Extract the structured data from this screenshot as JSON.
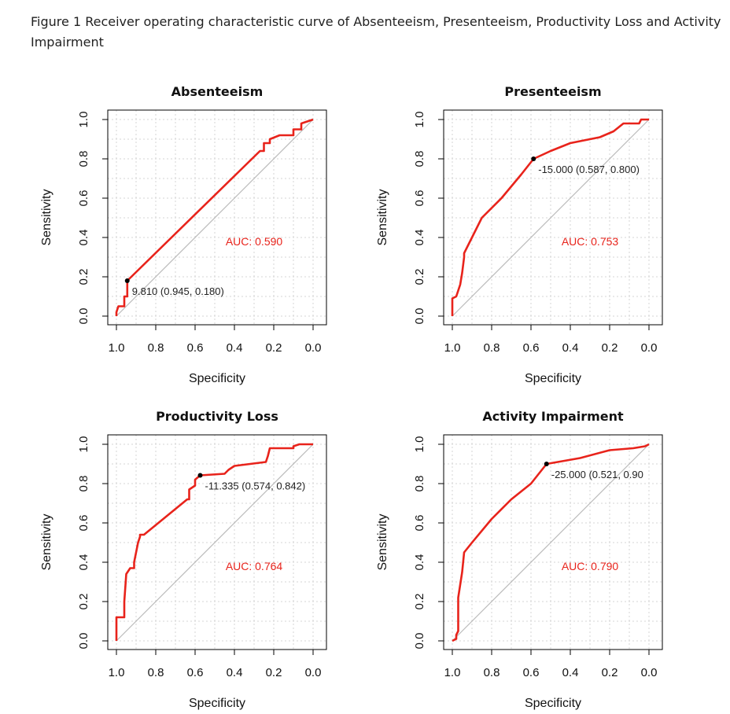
{
  "figure_caption": "Figure 1 Receiver operating characteristic curve of Absenteeism, Presenteeism, Productivity Loss and Activity Impairment",
  "colors": {
    "curve": "#e8231b",
    "diagonal": "#bbbbbb",
    "grid": "#d4d4d4",
    "point": "#000000",
    "auc_text": "#e8231b"
  },
  "chart_data": [
    {
      "type": "line",
      "title": "Absenteeism",
      "xlabel": "Specificity",
      "ylabel": "Sensitivity",
      "xlim": [
        1.0,
        0.0
      ],
      "ylim": [
        0.0,
        1.0
      ],
      "x_ticks": [
        "1.0",
        "0.8",
        "0.6",
        "0.4",
        "0.2",
        "0.0"
      ],
      "y_ticks": [
        "0.0",
        "0.2",
        "0.4",
        "0.6",
        "0.8",
        "1.0"
      ],
      "grid": true,
      "auc_label": "AUC: 0.590",
      "threshold_label": "9.810 (0.945, 0.180)",
      "threshold_point": {
        "specificity": 0.945,
        "sensitivity": 0.18
      },
      "specificity": [
        1.0,
        1.0,
        0.99,
        0.96,
        0.96,
        0.945,
        0.945,
        0.27,
        0.25,
        0.25,
        0.22,
        0.22,
        0.17,
        0.17,
        0.1,
        0.1,
        0.06,
        0.06,
        0.03,
        0.0
      ],
      "sensitivity": [
        0.0,
        0.02,
        0.05,
        0.05,
        0.1,
        0.1,
        0.18,
        0.84,
        0.84,
        0.88,
        0.88,
        0.9,
        0.92,
        0.92,
        0.92,
        0.95,
        0.95,
        0.98,
        0.99,
        1.0
      ]
    },
    {
      "type": "line",
      "title": "Presenteeism",
      "xlabel": "Specificity",
      "ylabel": "Sensitivity",
      "xlim": [
        1.0,
        0.0
      ],
      "ylim": [
        0.0,
        1.0
      ],
      "x_ticks": [
        "1.0",
        "0.8",
        "0.6",
        "0.4",
        "0.2",
        "0.0"
      ],
      "y_ticks": [
        "0.0",
        "0.2",
        "0.4",
        "0.6",
        "0.8",
        "1.0"
      ],
      "grid": true,
      "auc_label": "AUC: 0.753",
      "threshold_label": "-15.000 (0.587, 0.800)",
      "threshold_point": {
        "specificity": 0.587,
        "sensitivity": 0.8
      },
      "specificity": [
        1.0,
        1.0,
        0.98,
        0.96,
        0.95,
        0.94,
        0.94,
        0.9,
        0.85,
        0.75,
        0.65,
        0.587,
        0.5,
        0.4,
        0.3,
        0.25,
        0.18,
        0.13,
        0.05,
        0.04,
        0.0
      ],
      "sensitivity": [
        0.0,
        0.09,
        0.1,
        0.16,
        0.22,
        0.3,
        0.32,
        0.4,
        0.5,
        0.6,
        0.72,
        0.8,
        0.84,
        0.88,
        0.9,
        0.91,
        0.94,
        0.98,
        0.98,
        1.0,
        1.0
      ]
    },
    {
      "type": "line",
      "title": "Productivity Loss",
      "xlabel": "Specificity",
      "ylabel": "Sensitivity",
      "xlim": [
        1.0,
        0.0
      ],
      "ylim": [
        0.0,
        1.0
      ],
      "x_ticks": [
        "1.0",
        "0.8",
        "0.6",
        "0.4",
        "0.2",
        "0.0"
      ],
      "y_ticks": [
        "0.0",
        "0.2",
        "0.4",
        "0.6",
        "0.8",
        "1.0"
      ],
      "grid": true,
      "auc_label": "AUC: 0.764",
      "threshold_label": "-11.335 (0.574, 0.842)",
      "threshold_point": {
        "specificity": 0.574,
        "sensitivity": 0.842
      },
      "specificity": [
        1.0,
        1.0,
        0.96,
        0.96,
        0.95,
        0.93,
        0.91,
        0.91,
        0.89,
        0.88,
        0.88,
        0.86,
        0.64,
        0.63,
        0.63,
        0.6,
        0.6,
        0.574,
        0.45,
        0.43,
        0.4,
        0.24,
        0.23,
        0.22,
        0.1,
        0.1,
        0.07,
        0.0
      ],
      "sensitivity": [
        0.0,
        0.12,
        0.12,
        0.2,
        0.34,
        0.37,
        0.37,
        0.4,
        0.5,
        0.53,
        0.54,
        0.54,
        0.72,
        0.72,
        0.77,
        0.79,
        0.82,
        0.842,
        0.85,
        0.87,
        0.89,
        0.91,
        0.94,
        0.98,
        0.98,
        0.99,
        1.0,
        1.0
      ]
    },
    {
      "type": "line",
      "title": "Activity Impairment",
      "xlabel": "Specificity",
      "ylabel": "Sensitivity",
      "xlim": [
        1.0,
        0.0
      ],
      "ylim": [
        0.0,
        1.0
      ],
      "x_ticks": [
        "1.0",
        "0.8",
        "0.6",
        "0.4",
        "0.2",
        "0.0"
      ],
      "y_ticks": [
        "0.0",
        "0.2",
        "0.4",
        "0.6",
        "0.8",
        "1.0"
      ],
      "grid": true,
      "auc_label": "AUC: 0.790",
      "threshold_label": "-25.000 (0.521, 0.90",
      "threshold_point": {
        "specificity": 0.521,
        "sensitivity": 0.9
      },
      "specificity": [
        1.0,
        0.98,
        0.98,
        0.97,
        0.97,
        0.95,
        0.94,
        0.9,
        0.8,
        0.7,
        0.6,
        0.521,
        0.35,
        0.2,
        0.08,
        0.02,
        0.0
      ],
      "sensitivity": [
        0.0,
        0.01,
        0.03,
        0.05,
        0.22,
        0.35,
        0.45,
        0.5,
        0.62,
        0.72,
        0.8,
        0.9,
        0.93,
        0.97,
        0.98,
        0.99,
        1.0
      ]
    }
  ]
}
